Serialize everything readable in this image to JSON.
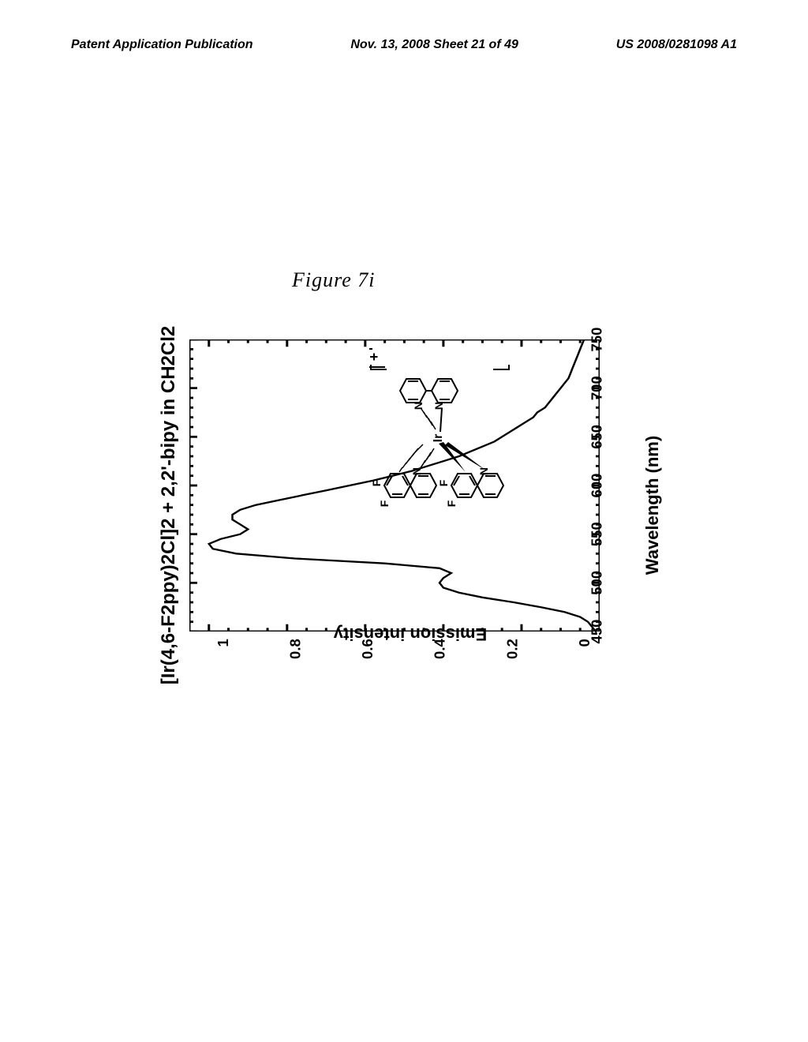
{
  "header": {
    "left": "Patent Application Publication",
    "center": "Nov. 13, 2008  Sheet 21 of 49",
    "right": "US 2008/0281098 A1"
  },
  "figure_label": "Figure 7i",
  "chart": {
    "type": "line",
    "title": "[Ir(4,6-F2ppy)2Cl]2 + 2,2'-bipy in CH2Cl2",
    "xlabel": "Wavelength (nm)",
    "ylabel": "Emission intensity",
    "xlim": [
      450,
      750
    ],
    "ylim": [
      0,
      1.05
    ],
    "xticks": [
      450,
      500,
      550,
      600,
      650,
      700,
      750
    ],
    "yticks": [
      0,
      0.2,
      0.4,
      0.6,
      0.8,
      1
    ],
    "minor_x_step": 10,
    "minor_y_step": 0.05,
    "line_color": "#000000",
    "line_width": 2.5,
    "axis_color": "#000000",
    "axis_width": 3,
    "background_color": "#ffffff",
    "tick_fontsize": 20,
    "label_fontsize": 22,
    "title_fontsize": 24,
    "data": {
      "x": [
        450,
        455,
        460,
        465,
        470,
        475,
        480,
        485,
        490,
        495,
        500,
        505,
        510,
        515,
        520,
        525,
        530,
        535,
        540,
        545,
        550,
        555,
        560,
        565,
        570,
        575,
        580,
        585,
        590,
        595,
        600,
        605,
        610,
        615,
        620,
        625,
        630,
        635,
        640,
        645,
        650,
        655,
        660,
        665,
        670,
        675,
        680,
        685,
        690,
        695,
        700,
        705,
        710,
        715,
        720,
        725,
        730,
        735,
        740,
        745,
        750
      ],
      "y": [
        0.01,
        0.02,
        0.03,
        0.05,
        0.09,
        0.15,
        0.22,
        0.3,
        0.36,
        0.4,
        0.41,
        0.4,
        0.38,
        0.41,
        0.55,
        0.78,
        0.93,
        0.99,
        1.0,
        0.97,
        0.92,
        0.9,
        0.92,
        0.94,
        0.94,
        0.92,
        0.88,
        0.82,
        0.76,
        0.7,
        0.64,
        0.58,
        0.53,
        0.48,
        0.44,
        0.4,
        0.36,
        0.33,
        0.3,
        0.27,
        0.25,
        0.23,
        0.21,
        0.19,
        0.17,
        0.16,
        0.14,
        0.13,
        0.12,
        0.11,
        0.1,
        0.09,
        0.08,
        0.075,
        0.07,
        0.065,
        0.06,
        0.055,
        0.05,
        0.045,
        0.04
      ]
    }
  },
  "molecule": {
    "atom_labels": [
      "F",
      "F",
      "F",
      "F",
      "N",
      "N",
      "N",
      "N",
      "Ir"
    ],
    "charge": "+"
  }
}
